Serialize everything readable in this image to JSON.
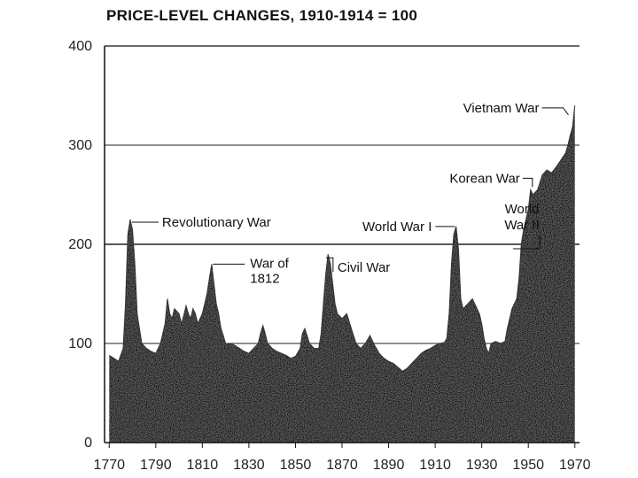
{
  "chart_data": {
    "type": "area",
    "title": "PRICE-LEVEL CHANGES, 1910-1914 = 100",
    "xlabel": "",
    "ylabel": "",
    "xlim": [
      1768,
      1972
    ],
    "ylim": [
      0,
      400
    ],
    "grid": true,
    "x_ticks": [
      1770,
      1790,
      1810,
      1830,
      1850,
      1870,
      1890,
      1910,
      1930,
      1950,
      1970
    ],
    "y_ticks": [
      0,
      100,
      200,
      300,
      400
    ],
    "series": [
      {
        "name": "Price level",
        "x": [
          1770,
          1772,
          1774,
          1776,
          1777,
          1778,
          1779,
          1780,
          1781,
          1782,
          1784,
          1786,
          1788,
          1790,
          1792,
          1794,
          1795,
          1796,
          1797,
          1798,
          1800,
          1801,
          1802,
          1803,
          1804,
          1805,
          1806,
          1807,
          1808,
          1809,
          1810,
          1811,
          1812,
          1813,
          1814,
          1815,
          1816,
          1817,
          1818,
          1819,
          1820,
          1822,
          1824,
          1826,
          1828,
          1830,
          1832,
          1834,
          1835,
          1836,
          1837,
          1838,
          1840,
          1842,
          1844,
          1846,
          1848,
          1850,
          1852,
          1853,
          1854,
          1855,
          1856,
          1858,
          1860,
          1861,
          1862,
          1863,
          1864,
          1865,
          1866,
          1867,
          1868,
          1870,
          1872,
          1874,
          1876,
          1878,
          1880,
          1882,
          1884,
          1886,
          1888,
          1890,
          1892,
          1894,
          1896,
          1898,
          1900,
          1902,
          1904,
          1906,
          1908,
          1910,
          1912,
          1914,
          1915,
          1916,
          1917,
          1918,
          1919,
          1920,
          1921,
          1922,
          1924,
          1926,
          1928,
          1929,
          1930,
          1931,
          1932,
          1933,
          1934,
          1936,
          1938,
          1940,
          1941,
          1942,
          1943,
          1944,
          1945,
          1946,
          1947,
          1948,
          1950,
          1951,
          1952,
          1954,
          1956,
          1958,
          1960,
          1962,
          1964,
          1966,
          1967,
          1968,
          1969,
          1970
        ],
        "values": [
          88,
          85,
          82,
          95,
          140,
          210,
          225,
          215,
          180,
          130,
          100,
          95,
          92,
          90,
          100,
          120,
          145,
          130,
          125,
          135,
          130,
          120,
          128,
          138,
          130,
          125,
          135,
          130,
          120,
          125,
          130,
          140,
          150,
          165,
          180,
          160,
          140,
          130,
          115,
          108,
          100,
          100,
          98,
          95,
          92,
          90,
          95,
          100,
          110,
          118,
          110,
          100,
          95,
          92,
          90,
          88,
          85,
          87,
          95,
          110,
          115,
          108,
          100,
          95,
          95,
          110,
          140,
          170,
          190,
          180,
          160,
          140,
          130,
          125,
          130,
          115,
          100,
          95,
          100,
          108,
          98,
          90,
          85,
          82,
          80,
          76,
          72,
          75,
          80,
          85,
          90,
          93,
          95,
          98,
          100,
          101,
          105,
          130,
          180,
          210,
          218,
          195,
          145,
          135,
          140,
          145,
          135,
          130,
          120,
          105,
          95,
          90,
          100,
          102,
          100,
          102,
          115,
          125,
          135,
          140,
          145,
          165,
          200,
          215,
          235,
          255,
          250,
          255,
          270,
          275,
          272,
          278,
          285,
          292,
          300,
          310,
          318,
          340
        ]
      }
    ],
    "annotations": [
      {
        "label": "Revolutionary War",
        "x": 1779,
        "y": 225
      },
      {
        "label": "War of",
        "x": 1813,
        "y": 180
      },
      {
        "label": "1812",
        "x": 1813,
        "y": 180
      },
      {
        "label": "Civil War",
        "x": 1865,
        "y": 190
      },
      {
        "label": "World War I",
        "x": 1920,
        "y": 218
      },
      {
        "label": "World",
        "x": 1945,
        "y": 200
      },
      {
        "label": "War II",
        "x": 1945,
        "y": 200
      },
      {
        "label": "Korean War",
        "x": 1951,
        "y": 255
      },
      {
        "label": "Vietnam War",
        "x": 1968,
        "y": 318
      }
    ]
  }
}
